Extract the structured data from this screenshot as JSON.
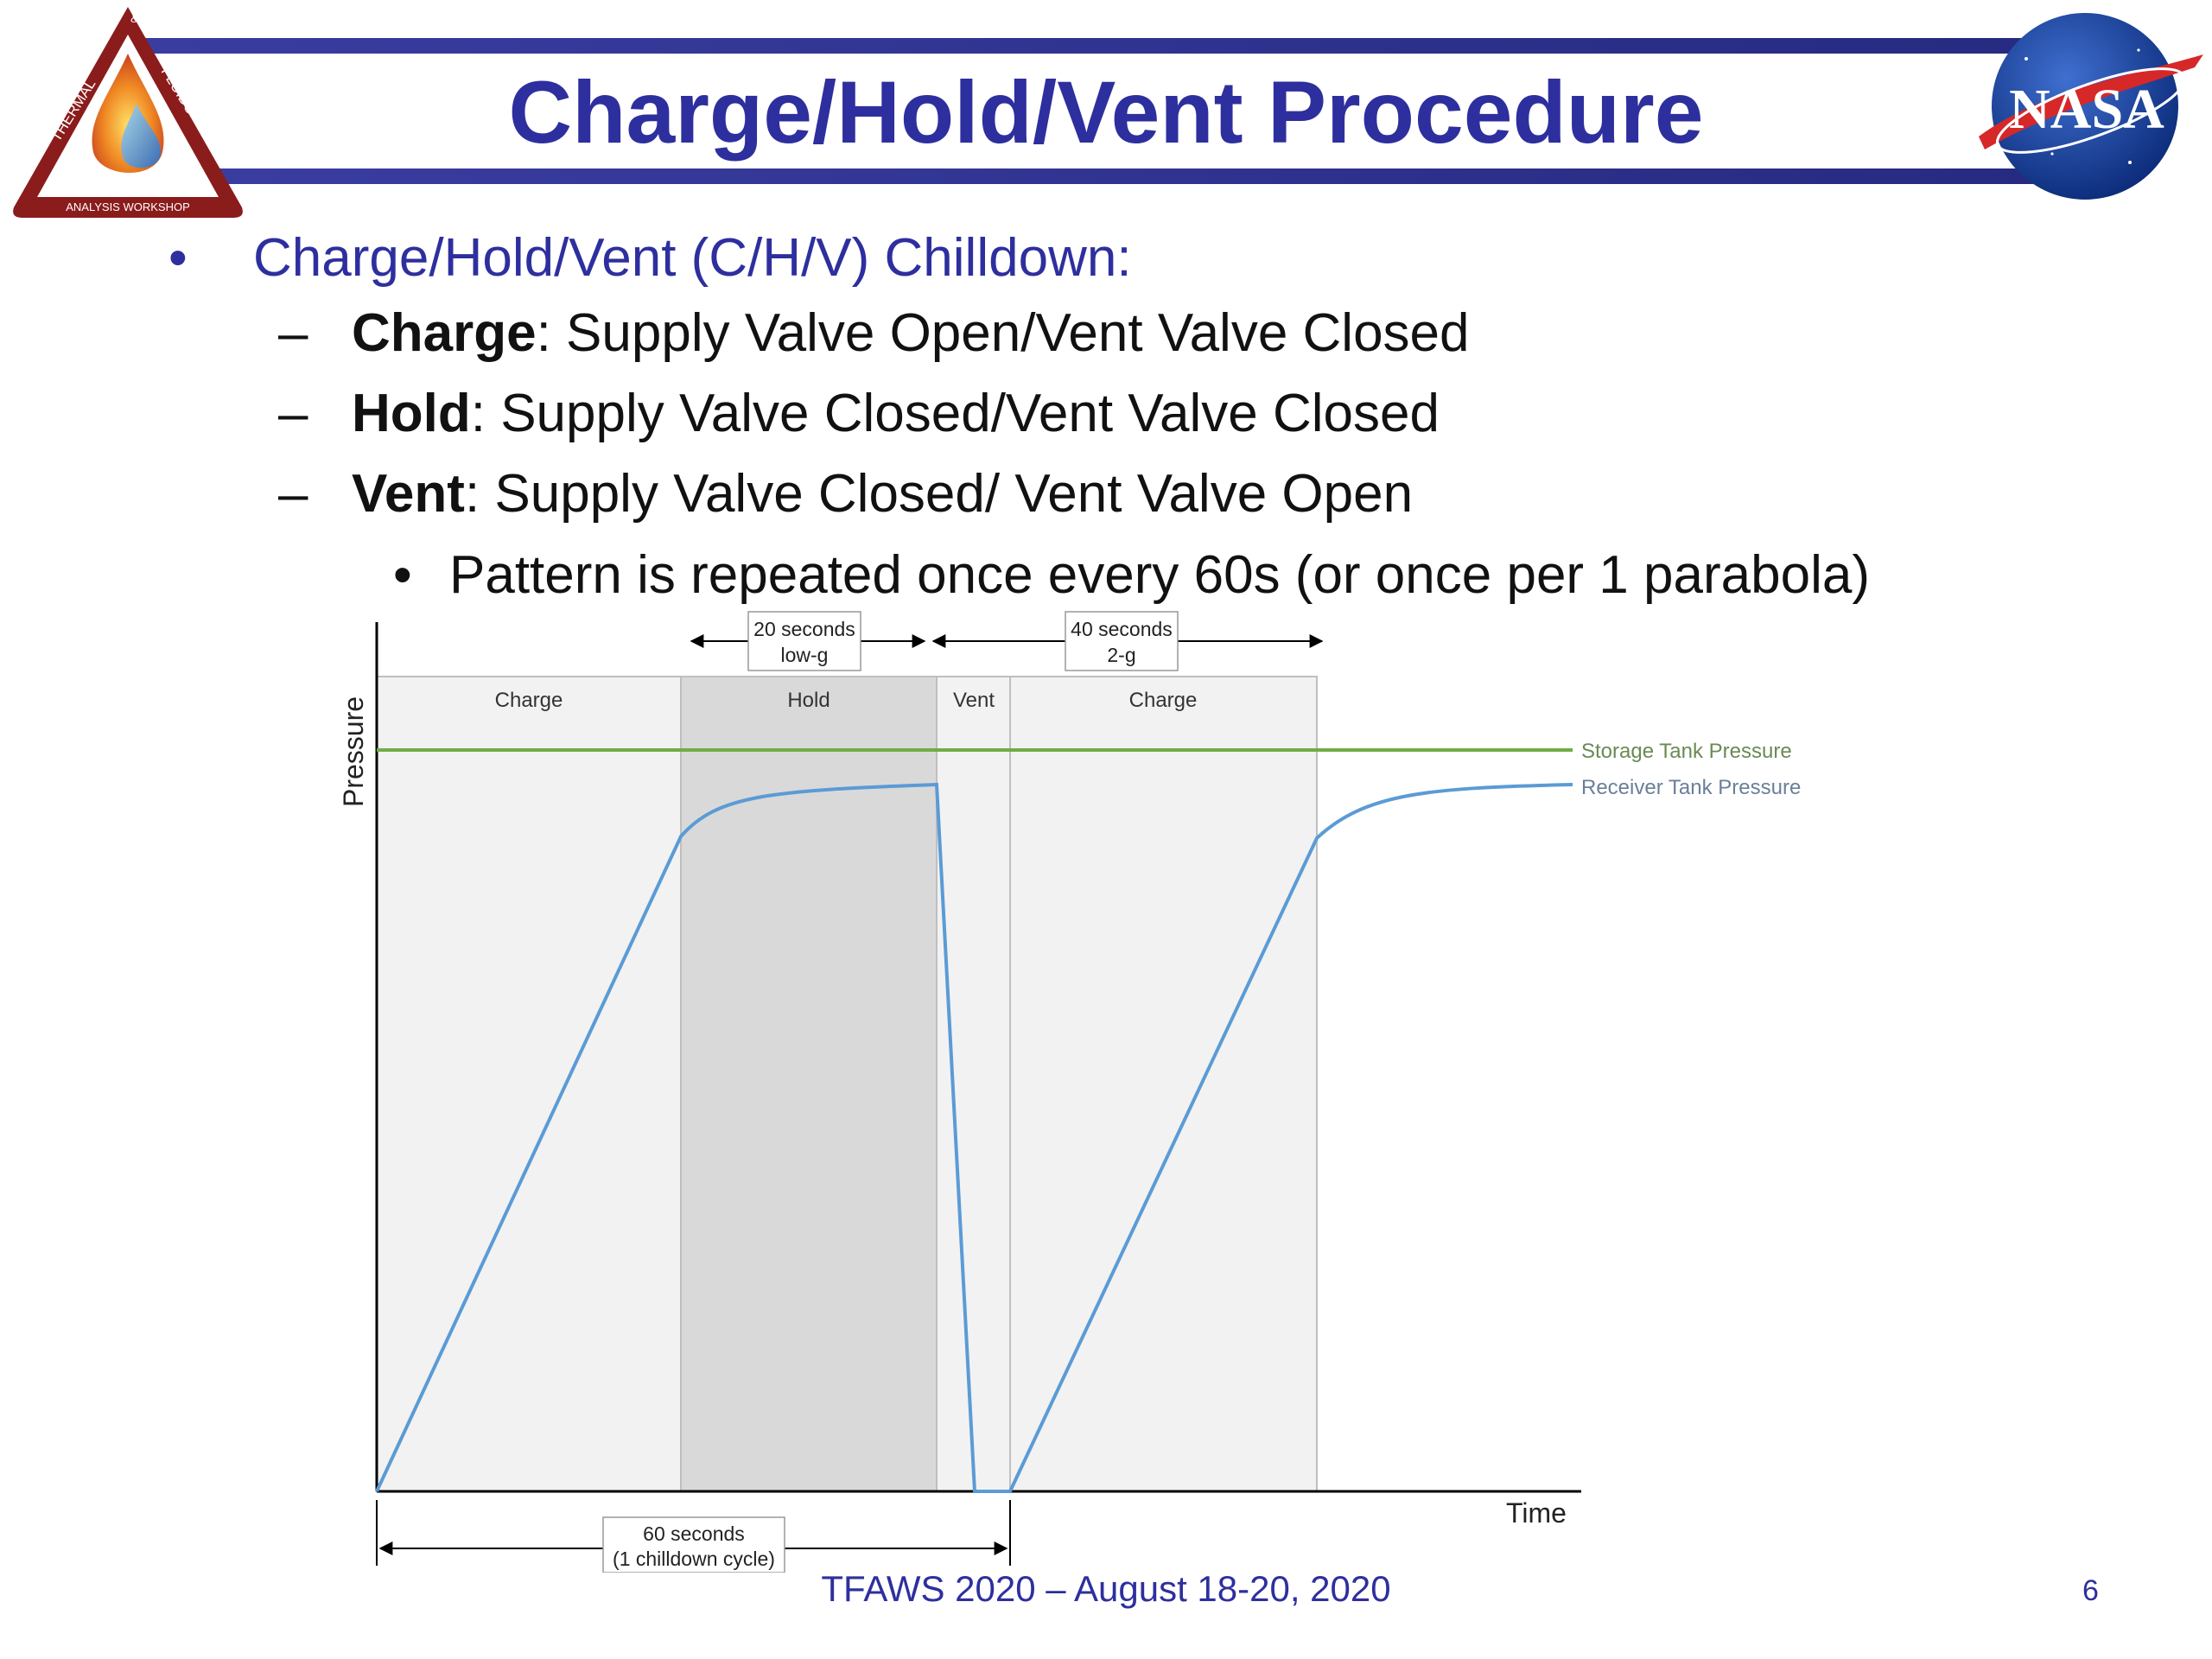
{
  "slide": {
    "title": "Charge/Hold/Vent Procedure",
    "bullet": "Charge/Hold/Vent (C/H/V) Chilldown:",
    "sub_bullets": [
      {
        "term": "Charge",
        "text": ": Supply Valve Open/Vent Valve Closed"
      },
      {
        "term": "Hold",
        "text": ": Supply Valve Closed/Vent Valve Closed"
      },
      {
        "term": "Vent",
        "text": ": Supply Valve Closed/ Vent Valve Open"
      }
    ],
    "sub_sub_bullet": "Pattern is repeated once every 60s (or once per 1 parabola)",
    "footer": "TFAWS 2020 – August 18-20, 2020",
    "page_number": "6"
  },
  "logos": {
    "left": {
      "lines": [
        "THERMAL",
        "&",
        "FLUIDS",
        "ANALYSIS WORKSHOP"
      ],
      "color": "#8b1c1c"
    },
    "right": {
      "text": "NASA",
      "color": "#1b3f9a"
    }
  },
  "diagram": {
    "phases": [
      "Charge",
      "Hold",
      "Vent",
      "Charge"
    ],
    "top_spans": [
      {
        "line1": "20 seconds",
        "line2": "low-g"
      },
      {
        "line1": "40 seconds",
        "line2": "2-g"
      }
    ],
    "bottom_span": {
      "line1": "60 seconds",
      "line2": "(1 chilldown cycle)"
    },
    "y_label": "Pressure",
    "x_label": "Time",
    "legend": {
      "storage": "Storage Tank Pressure",
      "receiver": "Receiver Tank Pressure"
    },
    "colors": {
      "storage": "#70ad47",
      "receiver": "#5b9bd5",
      "hold_shade": "#d9d9d9",
      "phase_shade": "#f2f2f2"
    }
  }
}
